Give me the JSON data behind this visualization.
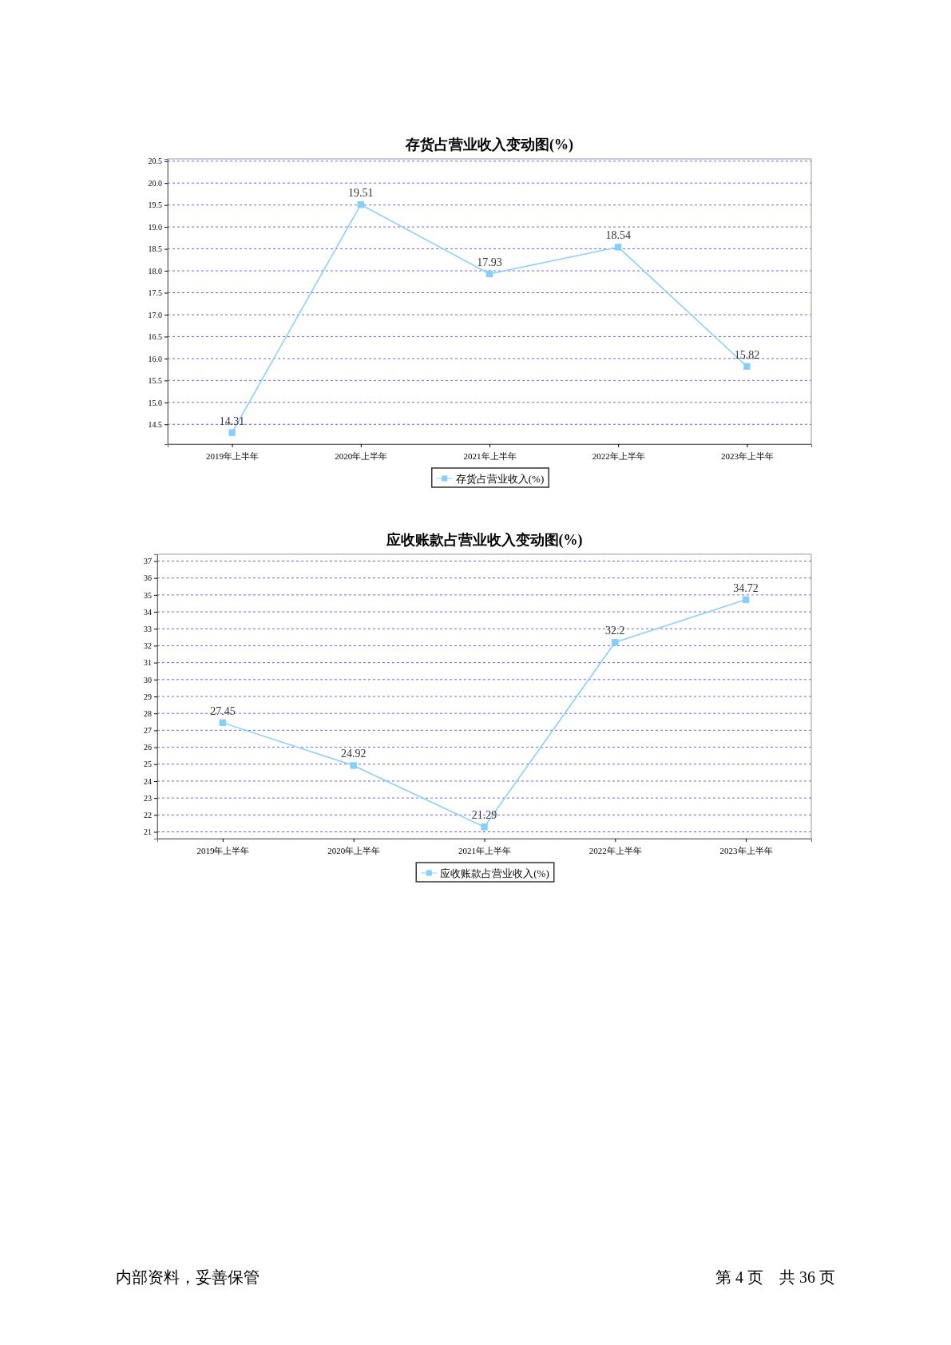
{
  "chart_data": [
    {
      "type": "line",
      "title": "存货占营业收入变动图(%)",
      "categories": [
        "2019年上半年",
        "2020年上半年",
        "2021年上半年",
        "2022年上半年",
        "2023年上半年"
      ],
      "series": [
        {
          "name": "存货占营业收入(%)",
          "color": "#87cefa",
          "values": [
            14.31,
            19.51,
            17.93,
            18.54,
            15.82
          ]
        }
      ],
      "ylim": [
        14.05,
        20.55
      ],
      "yticks": [
        {
          "value": 14.5,
          "label": "14.5"
        },
        {
          "value": 15,
          "label": "15.0"
        },
        {
          "value": 15.5,
          "label": "15.5"
        },
        {
          "value": 16,
          "label": "16.0"
        },
        {
          "value": 16.5,
          "label": "16.5"
        },
        {
          "value": 17,
          "label": "17.0"
        },
        {
          "value": 17.5,
          "label": "17.5"
        },
        {
          "value": 18,
          "label": "18.0"
        },
        {
          "value": 18.5,
          "label": "18.5"
        },
        {
          "value": 19,
          "label": "19.0"
        },
        {
          "value": 19.5,
          "label": "19.5"
        },
        {
          "value": 20,
          "label": "20.0"
        },
        {
          "value": 20.5,
          "label": "20.5"
        }
      ],
      "grid": "y",
      "legend": "bottom",
      "marker": "square",
      "data_labels": true
    },
    {
      "type": "line",
      "title": "应收账款占营业收入变动图(%)",
      "categories": [
        "2019年上半年",
        "2020年上半年",
        "2021年上半年",
        "2022年上半年",
        "2023年上半年"
      ],
      "series": [
        {
          "name": "应收账款占营业收入(%)",
          "color": "#87cefa",
          "values": [
            27.45,
            24.92,
            21.29,
            32.2,
            34.72
          ]
        }
      ],
      "ylim": [
        20.6,
        37.4
      ],
      "yticks": [
        21,
        22,
        23,
        24,
        25,
        26,
        27,
        28,
        29,
        30,
        31,
        32,
        33,
        34,
        35,
        36,
        37
      ],
      "grid": "y",
      "legend": "bottom",
      "marker": "square",
      "data_labels": true,
      "annotations": [
        "内部资料，妥善保管",
        "第 4 页　共 36 页"
      ]
    }
  ]
}
